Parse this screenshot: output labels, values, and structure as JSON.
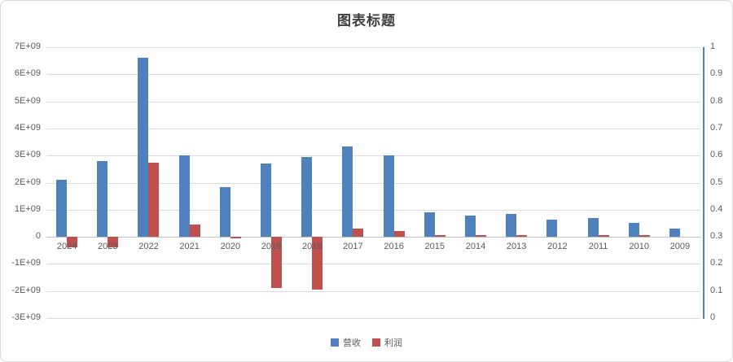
{
  "chart_data": {
    "type": "bar",
    "title": "图表标题",
    "categories": [
      "2024",
      "2023",
      "2022",
      "2021",
      "2020",
      "2019",
      "2018",
      "2017",
      "2016",
      "2015",
      "2014",
      "2013",
      "2012",
      "2011",
      "2010",
      "2009"
    ],
    "series": [
      {
        "name": "营收",
        "color": "#4F81BD",
        "values": [
          2100000000,
          2800000000,
          6600000000,
          3000000000,
          1850000000,
          2700000000,
          2950000000,
          3350000000,
          3000000000,
          900000000,
          800000000,
          850000000,
          650000000,
          700000000,
          500000000,
          300000000
        ]
      },
      {
        "name": "利润",
        "color": "#C0504D",
        "values": [
          -400000000,
          -400000000,
          2750000000,
          450000000,
          -50000000,
          -1900000000,
          -1950000000,
          300000000,
          200000000,
          50000000,
          50000000,
          50000000,
          0,
          60000000,
          60000000,
          0
        ]
      }
    ],
    "left_axis": {
      "min": -3000000000,
      "max": 7000000000,
      "ticks": [
        {
          "label": "7E+09",
          "value": 7000000000
        },
        {
          "label": "6E+09",
          "value": 6000000000
        },
        {
          "label": "5E+09",
          "value": 5000000000
        },
        {
          "label": "4E+09",
          "value": 4000000000
        },
        {
          "label": "3E+09",
          "value": 3000000000
        },
        {
          "label": "2E+09",
          "value": 2000000000
        },
        {
          "label": "1E+09",
          "value": 1000000000
        },
        {
          "label": "0",
          "value": 0
        },
        {
          "label": "-1E+09",
          "value": -1000000000
        },
        {
          "label": "-2E+09",
          "value": -2000000000
        },
        {
          "label": "-3E+09",
          "value": -3000000000
        }
      ]
    },
    "right_axis": {
      "min": 0,
      "max": 1,
      "ticks": [
        {
          "label": "1",
          "value": 1
        },
        {
          "label": "0.9",
          "value": 0.9
        },
        {
          "label": "0.8",
          "value": 0.8
        },
        {
          "label": "0.7",
          "value": 0.7
        },
        {
          "label": "0.6",
          "value": 0.6
        },
        {
          "label": "0.5",
          "value": 0.5
        },
        {
          "label": "0.4",
          "value": 0.4
        },
        {
          "label": "0.3",
          "value": 0.3
        },
        {
          "label": "0.2",
          "value": 0.2
        },
        {
          "label": "0.1",
          "value": 0.1
        },
        {
          "label": "0",
          "value": 0
        }
      ]
    },
    "grid": true,
    "legend_position": "bottom",
    "colors": {
      "gridline": "#dcdcdc",
      "zero_line": "#bfbfbf",
      "axis_text": "#595959",
      "right_axis_line": "#4F81BD"
    }
  }
}
